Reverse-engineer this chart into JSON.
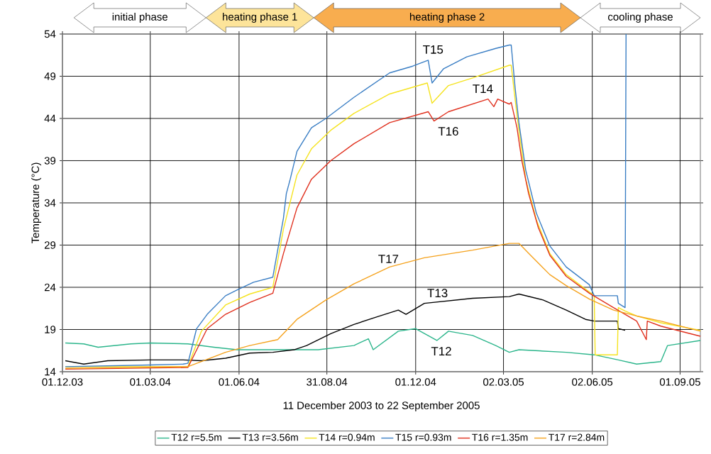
{
  "chart_data": {
    "type": "line",
    "xlabel": "11 December 2003 to 22 September 2005",
    "ylabel": "Temperature  (°C)",
    "xlim": [
      "2003-12-01",
      "2005-09-22"
    ],
    "ylim": [
      14,
      54
    ],
    "xticks": [
      {
        "value": "2003-12-01",
        "label": "01.12.03"
      },
      {
        "value": "2004-03-01",
        "label": "01.03.04"
      },
      {
        "value": "2004-06-01",
        "label": "01.06.04"
      },
      {
        "value": "2004-08-31",
        "label": "31.08.04"
      },
      {
        "value": "2004-12-01",
        "label": "01.12.04"
      },
      {
        "value": "2005-03-02",
        "label": "02.03.05"
      },
      {
        "value": "2005-06-02",
        "label": "02.06.05"
      },
      {
        "value": "2005-09-01",
        "label": "01.09.05"
      }
    ],
    "yticks": [
      14,
      19,
      24,
      29,
      34,
      39,
      44,
      49,
      54
    ],
    "grid": true,
    "legend": "bottom",
    "annotations": [
      "initial phase",
      "heating phase 1",
      "heating phase 2",
      "cooling phase",
      "T15",
      "T14",
      "T16",
      "T17",
      "T13",
      "T12"
    ],
    "series": [
      {
        "name": "T12 r=5.5m",
        "color": "#2bb58b",
        "x": [
          "2003-12-04",
          "2003-12-23",
          "2004-01-07",
          "2004-02-10",
          "2004-03-01",
          "2004-04-09",
          "2004-05-06",
          "2004-05-30",
          "2004-07-06",
          "2004-07-17",
          "2004-08-22",
          "2004-09-28",
          "2004-10-13",
          "2004-10-18",
          "2004-11-13",
          "2004-12-01",
          "2004-12-23",
          "2005-01-04",
          "2005-01-29",
          "2005-02-22",
          "2005-03-08",
          "2005-03-18",
          "2005-05-06",
          "2005-06-04",
          "2005-06-29",
          "2005-07-18",
          "2005-08-12",
          "2005-08-19",
          "2005-09-22"
        ],
        "values": [
          17.4,
          17.3,
          16.9,
          17.3,
          17.4,
          17.3,
          16.9,
          16.6,
          16.6,
          16.6,
          16.6,
          17.1,
          17.9,
          16.6,
          18.8,
          19.1,
          17.7,
          18.8,
          18.3,
          17.1,
          16.3,
          16.6,
          16.3,
          16.0,
          15.4,
          14.9,
          15.2,
          17.1,
          17.7
        ]
      },
      {
        "name": "T13 r=3.56m",
        "color": "#000000",
        "x": [
          "2003-12-04",
          "2003-12-23",
          "2004-01-17",
          "2004-03-01",
          "2004-04-04",
          "2004-04-23",
          "2004-05-18",
          "2004-06-12",
          "2004-07-06",
          "2004-07-28",
          "2004-08-10",
          "2004-09-04",
          "2004-09-28",
          "2004-10-22",
          "2004-11-13",
          "2004-11-21",
          "2004-12-10",
          "2005-01-29",
          "2005-03-08",
          "2005-03-18",
          "2005-04-12",
          "2005-05-06",
          "2005-05-26",
          "2005-06-04",
          "2005-06-28",
          "2005-06-29",
          "2005-07-06"
        ],
        "values": [
          15.3,
          14.9,
          15.3,
          15.4,
          15.4,
          15.3,
          15.6,
          16.2,
          16.3,
          16.6,
          17.1,
          18.5,
          19.6,
          20.5,
          21.3,
          20.8,
          22.1,
          22.7,
          22.9,
          23.2,
          22.5,
          21.3,
          20.2,
          20.0,
          20.0,
          19.1,
          18.9
        ]
      },
      {
        "name": "T14 r=0.94m",
        "color": "#f5e31f",
        "x": [
          "2003-12-04",
          "2004-04-09",
          "2004-04-23",
          "2004-05-18",
          "2004-06-12",
          "2004-07-06",
          "2004-07-17",
          "2004-07-31",
          "2004-08-15",
          "2004-09-04",
          "2004-09-28",
          "2004-11-04",
          "2004-12-13",
          "2004-12-18",
          "2005-01-04",
          "2005-01-29",
          "2005-03-08",
          "2005-03-10",
          "2005-03-14",
          "2005-03-18",
          "2005-03-25",
          "2005-04-05",
          "2005-04-19",
          "2005-05-06",
          "2005-06-04",
          "2005-06-05",
          "2005-06-28",
          "2005-06-29",
          "2005-07-06",
          "2005-07-18",
          "2005-08-12",
          "2005-09-22"
        ],
        "values": [
          14.6,
          14.6,
          18.8,
          21.9,
          23.2,
          24.0,
          30.9,
          37.3,
          40.4,
          42.6,
          44.6,
          46.9,
          48.2,
          45.8,
          47.9,
          48.8,
          50.3,
          50.3,
          46.3,
          42.6,
          36.8,
          32.0,
          28.0,
          25.5,
          23.0,
          16.0,
          16.0,
          21.6,
          21.2,
          20.6,
          19.8,
          18.9
        ]
      },
      {
        "name": "T15 r=0.93m",
        "color": "#3a7ec4",
        "x": [
          "2003-12-04",
          "2004-03-01",
          "2004-04-04",
          "2004-04-09",
          "2004-04-18",
          "2004-04-29",
          "2004-05-18",
          "2004-06-01",
          "2004-06-16",
          "2004-07-06",
          "2004-07-17",
          "2004-07-20",
          "2004-07-24",
          "2004-07-31",
          "2004-08-15",
          "2004-08-30",
          "2004-09-28",
          "2004-11-04",
          "2004-11-28",
          "2004-12-14",
          "2004-12-18",
          "2004-12-30",
          "2005-01-23",
          "2005-02-22",
          "2005-03-08",
          "2005-03-10",
          "2005-03-14",
          "2005-03-18",
          "2005-03-25",
          "2005-04-05",
          "2005-04-19",
          "2005-05-06",
          "2005-05-30",
          "2005-06-04",
          "2005-06-28",
          "2005-06-29",
          "2005-07-06",
          "2005-07-07"
        ],
        "values": [
          14.6,
          14.8,
          14.9,
          15.0,
          19.1,
          20.8,
          23.0,
          23.8,
          24.6,
          25.2,
          32.2,
          35.1,
          36.8,
          40.1,
          42.9,
          44.0,
          46.5,
          49.4,
          50.2,
          50.9,
          48.2,
          49.9,
          51.3,
          52.3,
          52.7,
          52.7,
          47.7,
          43.5,
          37.9,
          32.8,
          28.9,
          26.4,
          24.3,
          23.0,
          23.0,
          22.1,
          21.6,
          54
        ]
      },
      {
        "name": "T16 r=1.35m",
        "color": "#e0301e",
        "x": [
          "2003-12-04",
          "2004-04-09",
          "2004-04-29",
          "2004-05-18",
          "2004-06-12",
          "2004-07-06",
          "2004-07-17",
          "2004-07-31",
          "2004-08-15",
          "2004-09-04",
          "2004-09-28",
          "2004-11-04",
          "2004-12-14",
          "2004-12-20",
          "2005-01-04",
          "2005-02-14",
          "2005-02-20",
          "2005-02-24",
          "2005-03-08",
          "2005-03-10",
          "2005-03-16",
          "2005-03-21",
          "2005-03-28",
          "2005-04-07",
          "2005-04-19",
          "2005-05-06",
          "2005-05-30",
          "2005-06-24",
          "2005-07-18",
          "2005-07-28",
          "2005-07-29",
          "2005-08-12",
          "2005-09-22"
        ],
        "values": [
          14.3,
          14.5,
          19.1,
          20.8,
          22.2,
          23.3,
          28.0,
          33.4,
          36.8,
          39.0,
          41.0,
          43.5,
          44.8,
          43.7,
          44.8,
          46.3,
          45.4,
          46.3,
          45.7,
          45.9,
          42.9,
          39.0,
          35.1,
          31.1,
          27.8,
          25.3,
          23.3,
          21.6,
          20.0,
          17.8,
          20.0,
          19.4,
          18.2
        ]
      },
      {
        "name": "T17 r=2.84m",
        "color": "#f5a21d",
        "x": [
          "2003-12-04",
          "2004-04-09",
          "2004-04-23",
          "2004-05-18",
          "2004-06-12",
          "2004-07-11",
          "2004-07-31",
          "2004-08-30",
          "2004-09-28",
          "2004-11-04",
          "2004-12-10",
          "2005-01-29",
          "2005-03-08",
          "2005-03-18",
          "2005-03-30",
          "2005-04-19",
          "2005-05-06",
          "2005-05-30",
          "2005-06-24",
          "2005-07-18",
          "2005-08-12",
          "2005-09-22"
        ],
        "values": [
          14.4,
          14.6,
          15.2,
          16.3,
          17.1,
          17.8,
          20.2,
          22.5,
          24.4,
          26.4,
          27.5,
          28.4,
          29.2,
          29.2,
          27.8,
          25.5,
          24.2,
          22.6,
          21.3,
          20.6,
          20.0,
          18.8
        ]
      }
    ]
  }
}
